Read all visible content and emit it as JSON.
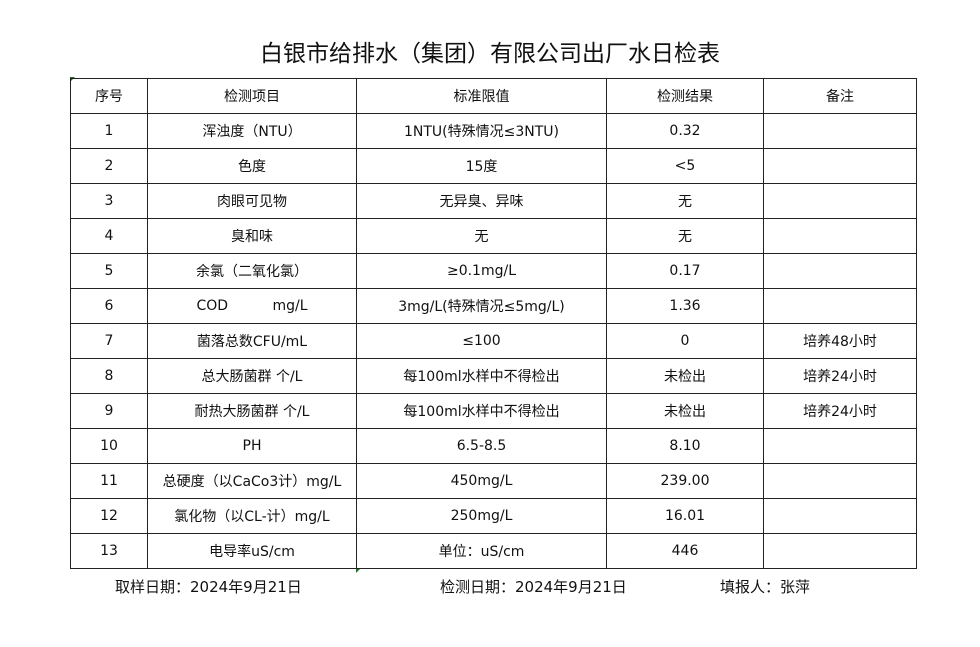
{
  "title": "白银市给排水（集团）有限公司出厂水日检表",
  "headers": [
    "序号",
    "检测项目",
    "标准限值",
    "检测结果",
    "备注"
  ],
  "rows": [
    [
      "1",
      "浑浊度（NTU）",
      "1NTU(特殊情况≤3NTU)",
      "0.32",
      ""
    ],
    [
      "2",
      "色度",
      "15度",
      "<5",
      ""
    ],
    [
      "3",
      "肉眼可见物",
      "无异臭、异味",
      "无",
      ""
    ],
    [
      "4",
      "臭和味",
      "无",
      "无",
      ""
    ],
    [
      "5",
      "余氯（二氧化氯）",
      "≥0.1mg/L",
      "0.17",
      ""
    ],
    [
      "6",
      "COD          mg/L",
      "3mg/L(特殊情况≤5mg/L)",
      "1.36",
      ""
    ],
    [
      "7",
      "菌落总数CFU/mL",
      "≤100",
      "0",
      "培养48小时"
    ],
    [
      "8",
      "总大肠菌群 个/L",
      "每100ml水样中不得检出",
      "未检出",
      "培养24小时"
    ],
    [
      "9",
      "耐热大肠菌群 个/L",
      "每100ml水样中不得检出",
      "未检出",
      "培养24小时"
    ],
    [
      "10",
      "PH",
      "6.5-8.5",
      "8.10",
      ""
    ],
    [
      "11",
      "总硬度（以CaCo3计）mg/L",
      "450mg/L",
      "239.00",
      ""
    ],
    [
      "12",
      "氯化物（以CL-计）mg/L",
      "250mg/L",
      "16.01",
      ""
    ],
    [
      "13",
      "电导率uS/cm",
      "单位：uS/cm",
      "446",
      ""
    ]
  ],
  "footer": {
    "sampling_date": "取样日期：2024年9月21日",
    "test_date": "检测日期：2024年9月21日",
    "reporter": "填报人：张萍"
  }
}
